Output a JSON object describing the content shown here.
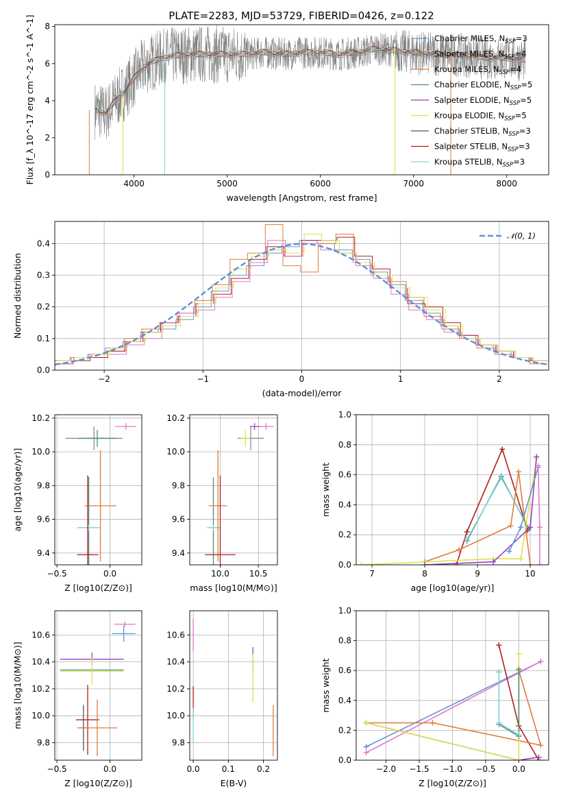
{
  "figure": {
    "title": "PLATE=2283, MJD=53729, FIBERID=0426, z=0.122",
    "colors": [
      "#6394d6",
      "#8c8c8c",
      "#e07b39",
      "#4a8f7a",
      "#9a3fc0",
      "#dbe34a",
      "#555555",
      "#b01c1c",
      "#7fd3d8",
      "#e076c9"
    ]
  },
  "chart_data": [
    {
      "id": "spectrum",
      "type": "line",
      "xlabel": "wavelength [Angstrom, rest frame]",
      "ylabel": "Flux [f_λ 10^-17 erg cm^-2 s^-1 A^-1]",
      "xlim": [
        3150,
        8450
      ],
      "ylim": [
        0,
        8.1
      ],
      "xticks": [
        4000,
        5000,
        6000,
        7000,
        8000
      ],
      "yticks": [
        0,
        2,
        4,
        6,
        8
      ],
      "grid": false,
      "legend_position": "top-right",
      "series": [
        {
          "name": "Chabrier MILES, N_SSP=3",
          "color": "#6394d6"
        },
        {
          "name": "Salpeter MILES, N_SSP=4",
          "color": "#8c8c8c"
        },
        {
          "name": "Kroupa MILES, N_SSP=4",
          "color": "#e07b39"
        },
        {
          "name": "Chabrier ELODIE, N_SSP=5",
          "color": "#4a8f7a"
        },
        {
          "name": "Salpeter ELODIE, N_SSP=5",
          "color": "#9a3fc0"
        },
        {
          "name": "Kroupa ELODIE, N_SSP=5",
          "color": "#dbe34a"
        },
        {
          "name": "Chabrier STELIB, N_SSP=3",
          "color": "#555555"
        },
        {
          "name": "Salpeter STELIB, N_SSP=3",
          "color": "#b01c1c"
        },
        {
          "name": "Kroupa STELIB, N_SSP=3",
          "color": "#7fd3d8"
        }
      ],
      "model_curve": {
        "x": [
          3600,
          3700,
          3800,
          3900,
          4000,
          4100,
          4200,
          4300,
          4400,
          4600,
          4800,
          5000,
          5200,
          5400,
          5600,
          5800,
          6000,
          6200,
          6400,
          6600,
          6800,
          7000,
          7200,
          7400,
          7600,
          7800,
          8000,
          8200
        ],
        "y": [
          3.5,
          3.3,
          4.0,
          4.5,
          5.2,
          5.8,
          6.1,
          6.3,
          6.4,
          6.5,
          6.5,
          6.5,
          6.5,
          6.6,
          6.5,
          6.6,
          6.6,
          6.5,
          6.6,
          6.8,
          6.7,
          6.6,
          6.5,
          6.5,
          6.4,
          6.3,
          6.3,
          6.2
        ]
      }
    },
    {
      "id": "residuals",
      "type": "line",
      "xlabel": "(data-model)/error",
      "ylabel": "Normed distribution",
      "xlim": [
        -2.5,
        2.5
      ],
      "ylim": [
        0,
        0.47
      ],
      "xticks": [
        -2,
        -1,
        0,
        1,
        2
      ],
      "yticks": [
        0.0,
        0.1,
        0.2,
        0.3,
        0.4
      ],
      "grid": true,
      "legend_position": "top-right",
      "reference": {
        "name": "𝒩(0, 1)",
        "color": "#5b8fd6",
        "mean": 0,
        "sigma": 1
      },
      "histograms": [
        {
          "color": "#6394d6",
          "values": [
            0.03,
            0.04,
            0.05,
            0.07,
            0.09,
            0.12,
            0.13,
            0.16,
            0.2,
            0.25,
            0.3,
            0.33,
            0.37,
            0.39,
            0.41,
            0.4,
            0.38,
            0.35,
            0.31,
            0.27,
            0.22,
            0.18,
            0.14,
            0.11,
            0.08,
            0.06,
            0.04,
            0.03
          ]
        },
        {
          "color": "#e07b39",
          "values": [
            0.03,
            0.04,
            0.05,
            0.06,
            0.1,
            0.13,
            0.15,
            0.18,
            0.22,
            0.27,
            0.35,
            0.37,
            0.46,
            0.33,
            0.31,
            0.4,
            0.43,
            0.34,
            0.3,
            0.28,
            0.23,
            0.17,
            0.13,
            0.1,
            0.07,
            0.05,
            0.04,
            0.02
          ]
        },
        {
          "color": "#b01c1c",
          "values": [
            0.02,
            0.03,
            0.04,
            0.06,
            0.09,
            0.12,
            0.15,
            0.17,
            0.21,
            0.24,
            0.29,
            0.35,
            0.39,
            0.36,
            0.41,
            0.41,
            0.42,
            0.36,
            0.32,
            0.26,
            0.21,
            0.2,
            0.15,
            0.11,
            0.08,
            0.06,
            0.04,
            0.03
          ]
        },
        {
          "color": "#e076c9",
          "values": [
            0.02,
            0.04,
            0.05,
            0.05,
            0.08,
            0.1,
            0.15,
            0.18,
            0.19,
            0.23,
            0.28,
            0.34,
            0.41,
            0.36,
            0.4,
            0.38,
            0.37,
            0.33,
            0.29,
            0.24,
            0.19,
            0.16,
            0.12,
            0.1,
            0.08,
            0.06,
            0.04,
            0.03
          ]
        },
        {
          "color": "#dbe34a",
          "values": [
            0.03,
            0.04,
            0.05,
            0.07,
            0.09,
            0.12,
            0.14,
            0.17,
            0.21,
            0.26,
            0.32,
            0.36,
            0.38,
            0.37,
            0.43,
            0.41,
            0.37,
            0.34,
            0.3,
            0.26,
            0.23,
            0.19,
            0.14,
            0.1,
            0.08,
            0.06,
            0.04,
            0.03
          ]
        }
      ]
    },
    {
      "id": "age_vs_Z",
      "type": "scatter",
      "xlabel": "Z [log10(Z/Z⊙)]",
      "ylabel": "age [log10(age/yr)]",
      "xlim": [
        -0.52,
        0.3
      ],
      "ylim": [
        9.33,
        10.22
      ],
      "xticks": [
        -0.5,
        0.0
      ],
      "yticks": [
        9.4,
        9.6,
        9.8,
        10.0,
        10.2
      ],
      "grid": true,
      "points": [
        {
          "x": -0.15,
          "y": 10.08,
          "xerr": 0.27,
          "yerr": 0.07,
          "color": "#8c8c8c"
        },
        {
          "x": -0.12,
          "y": 10.08,
          "xerr": 0.18,
          "yerr": 0.05,
          "color": "#4a8f7a"
        },
        {
          "x": 0.15,
          "y": 10.15,
          "xerr": 0.1,
          "yerr": 0.02,
          "color": "#e076c9"
        },
        {
          "x": -0.2,
          "y": 9.55,
          "xerr": 0.1,
          "yerr": 0.3,
          "color": "#4a8f7a"
        },
        {
          "x": -0.2,
          "y": 9.55,
          "xerr": 0.11,
          "yerr": 0.02,
          "color": "#7fd3d8"
        },
        {
          "x": -0.09,
          "y": 9.68,
          "xerr": 0.15,
          "yerr": 0.33,
          "color": "#e07b39"
        },
        {
          "x": -0.21,
          "y": 9.39,
          "xerr": 0.1,
          "yerr": 0.47,
          "color": "#b01c1c"
        }
      ]
    },
    {
      "id": "age_vs_mass",
      "type": "scatter",
      "xlabel": "mass [log10(M/M⊙)]",
      "ylabel": "",
      "xlim": [
        9.6,
        10.75
      ],
      "ylim": [
        9.33,
        10.22
      ],
      "xticks": [
        10.0,
        10.5
      ],
      "yticks": [
        9.4,
        9.6,
        9.8,
        10.0,
        10.2
      ],
      "grid": true,
      "points": [
        {
          "x": 10.4,
          "y": 10.08,
          "xerr": 0.17,
          "yerr": 0.07,
          "color": "#8c8c8c"
        },
        {
          "x": 10.33,
          "y": 10.08,
          "xerr": 0.06,
          "yerr": 0.05,
          "color": "#dbe34a"
        },
        {
          "x": 10.6,
          "y": 10.15,
          "xerr": 0.1,
          "yerr": 0.02,
          "color": "#e076c9"
        },
        {
          "x": 10.45,
          "y": 10.15,
          "xerr": 0.06,
          "yerr": 0.02,
          "color": "#9a3fc0"
        },
        {
          "x": 9.91,
          "y": 9.55,
          "xerr": 0.08,
          "yerr": 0.3,
          "color": "#4a8f7a"
        },
        {
          "x": 9.91,
          "y": 9.55,
          "xerr": 0.08,
          "yerr": 0.02,
          "color": "#7fd3d8"
        },
        {
          "x": 9.97,
          "y": 9.68,
          "xerr": 0.12,
          "yerr": 0.33,
          "color": "#e07b39"
        },
        {
          "x": 10.0,
          "y": 9.39,
          "xerr": 0.2,
          "yerr": 0.47,
          "color": "#b01c1c"
        }
      ]
    },
    {
      "id": "massweight_vs_age",
      "type": "line",
      "xlabel": "age [log10(age/yr)]",
      "ylabel": "mass weight",
      "xlim": [
        6.7,
        10.35
      ],
      "ylim": [
        0,
        1.0
      ],
      "xticks": [
        7,
        8,
        9,
        10
      ],
      "yticks": [
        0.0,
        0.2,
        0.4,
        0.6,
        0.8,
        1.0
      ],
      "grid": true,
      "series": [
        {
          "color": "#b01c1c",
          "x": [
            8.6,
            8.8,
            9.47,
            9.95
          ],
          "y": [
            0.0,
            0.22,
            0.77,
            0.23
          ]
        },
        {
          "color": "#4a8f7a",
          "x": [
            8.8,
            9.45,
            9.97
          ],
          "y": [
            0.16,
            0.59,
            0.24
          ]
        },
        {
          "color": "#7fd3d8",
          "x": [
            8.8,
            9.45,
            9.97
          ],
          "y": [
            0.17,
            0.58,
            0.25
          ]
        },
        {
          "color": "#e07b39",
          "x": [
            8.0,
            8.65,
            9.63,
            9.78,
            10.0
          ],
          "y": [
            0.02,
            0.1,
            0.26,
            0.62,
            0.0
          ]
        },
        {
          "color": "#dbe34a",
          "x": [
            6.8,
            9.3,
            9.82,
            10.12
          ],
          "y": [
            0.0,
            0.04,
            0.04,
            0.71
          ]
        },
        {
          "color": "#9a3fc0",
          "x": [
            8.0,
            9.3,
            10.0,
            10.12
          ],
          "y": [
            0.0,
            0.02,
            0.25,
            0.72
          ]
        },
        {
          "color": "#6394d6",
          "x": [
            9.6,
            9.82,
            10.15
          ],
          "y": [
            0.09,
            0.25,
            0.65
          ]
        },
        {
          "color": "#e076c9",
          "x": [
            10.15,
            10.18,
            10.18
          ],
          "y": [
            0.66,
            0.25,
            0.0
          ]
        }
      ]
    },
    {
      "id": "mass_vs_Z",
      "type": "scatter",
      "xlabel": "Z [log10(Z/Z⊙)]",
      "ylabel": "mass [log10(M/M⊙)]",
      "xlim": [
        -0.52,
        0.3
      ],
      "ylim": [
        9.67,
        10.78
      ],
      "xticks": [
        -0.5,
        0.0
      ],
      "yticks": [
        9.8,
        10.0,
        10.2,
        10.4,
        10.6
      ],
      "grid": true,
      "points": [
        {
          "x": 0.14,
          "y": 10.68,
          "xerr": 0.1,
          "yerr": 0.02,
          "color": "#e076c9"
        },
        {
          "x": 0.13,
          "y": 10.61,
          "xerr": 0.11,
          "yerr": 0.06,
          "color": "#6394d6"
        },
        {
          "x": -0.17,
          "y": 10.42,
          "xerr": 0.3,
          "yerr": 0.05,
          "color": "#9a3fc0"
        },
        {
          "x": -0.17,
          "y": 10.34,
          "xerr": 0.3,
          "yerr": 0.02,
          "color": "#4a8f7a"
        },
        {
          "x": -0.17,
          "y": 10.33,
          "xerr": 0.3,
          "yerr": 0.1,
          "color": "#dbe34a"
        },
        {
          "x": -0.21,
          "y": 9.97,
          "xerr": 0.11,
          "yerr": 0.26,
          "color": "#b01c1c"
        },
        {
          "x": -0.25,
          "y": 9.91,
          "xerr": 0.04,
          "yerr": 0.17,
          "color": "#555555"
        },
        {
          "x": -0.12,
          "y": 9.91,
          "xerr": 0.19,
          "yerr": 0.21,
          "color": "#e07b39"
        }
      ]
    },
    {
      "id": "mass_vs_EBV",
      "type": "scatter",
      "xlabel": "E(B-V)",
      "ylabel": "",
      "xlim": [
        -0.01,
        0.24
      ],
      "ylim": [
        9.67,
        10.78
      ],
      "xticks": [
        0.0,
        0.1,
        0.2
      ],
      "yticks": [
        9.8,
        10.0,
        10.2,
        10.4,
        10.6
      ],
      "grid": true,
      "points": [
        {
          "x": 0.0,
          "y": 10.6,
          "xerr": 0.0,
          "yerr": 0.12,
          "color": "#e076c9"
        },
        {
          "x": 0.0,
          "y": 10.1,
          "xerr": 0.0,
          "yerr": 0.12,
          "color": "#b01c1c"
        },
        {
          "x": 0.0,
          "y": 9.93,
          "xerr": 0.0,
          "yerr": 0.13,
          "color": "#7fd3d8"
        },
        {
          "x": 0.17,
          "y": 10.42,
          "xerr": 0.0,
          "yerr": 0.09,
          "color": "#9a3fc0"
        },
        {
          "x": 0.17,
          "y": 10.28,
          "xerr": 0.0,
          "yerr": 0.18,
          "color": "#dbe34a"
        },
        {
          "x": 0.228,
          "y": 9.89,
          "xerr": 0.0,
          "yerr": 0.19,
          "color": "#e07b39"
        }
      ]
    },
    {
      "id": "massweight_vs_Z",
      "type": "line",
      "xlabel": "Z [log10(Z/Z⊙)]",
      "ylabel": "mass weight",
      "xlim": [
        -2.45,
        0.45
      ],
      "ylim": [
        0,
        1.0
      ],
      "xticks": [
        -2.0,
        -1.5,
        -1.0,
        -0.5,
        0.0
      ],
      "yticks": [
        0.0,
        0.2,
        0.4,
        0.6,
        0.8,
        1.0
      ],
      "grid": true,
      "series": [
        {
          "color": "#6394d6",
          "x": [
            -2.3,
            0.33
          ],
          "y": [
            0.09,
            0.66
          ]
        },
        {
          "color": "#e076c9",
          "x": [
            -2.3,
            0.33
          ],
          "y": [
            0.05,
            0.66
          ]
        },
        {
          "color": "#b01c1c",
          "x": [
            -0.3,
            0.0,
            0.3
          ],
          "y": [
            0.77,
            0.23,
            0.0
          ]
        },
        {
          "color": "#e07b39",
          "x": [
            -2.3,
            -1.3,
            0.33,
            0.0
          ],
          "y": [
            0.25,
            0.25,
            0.1,
            0.6
          ]
        },
        {
          "color": "#9a3fc0",
          "x": [
            -2.3,
            0.0,
            0.3
          ],
          "y": [
            0.25,
            0.0,
            0.02
          ]
        },
        {
          "color": "#dbe34a",
          "x": [
            -2.3,
            0.0,
            0.0
          ],
          "y": [
            0.25,
            0.0,
            0.71
          ]
        },
        {
          "color": "#4a8f7a",
          "x": [
            -0.3,
            -0.3,
            0.0,
            0.0
          ],
          "y": [
            0.59,
            0.24,
            0.16,
            0.61
          ]
        },
        {
          "color": "#7fd3d8",
          "x": [
            -0.3,
            -0.3,
            0.0
          ],
          "y": [
            0.59,
            0.25,
            0.17
          ]
        }
      ]
    }
  ]
}
